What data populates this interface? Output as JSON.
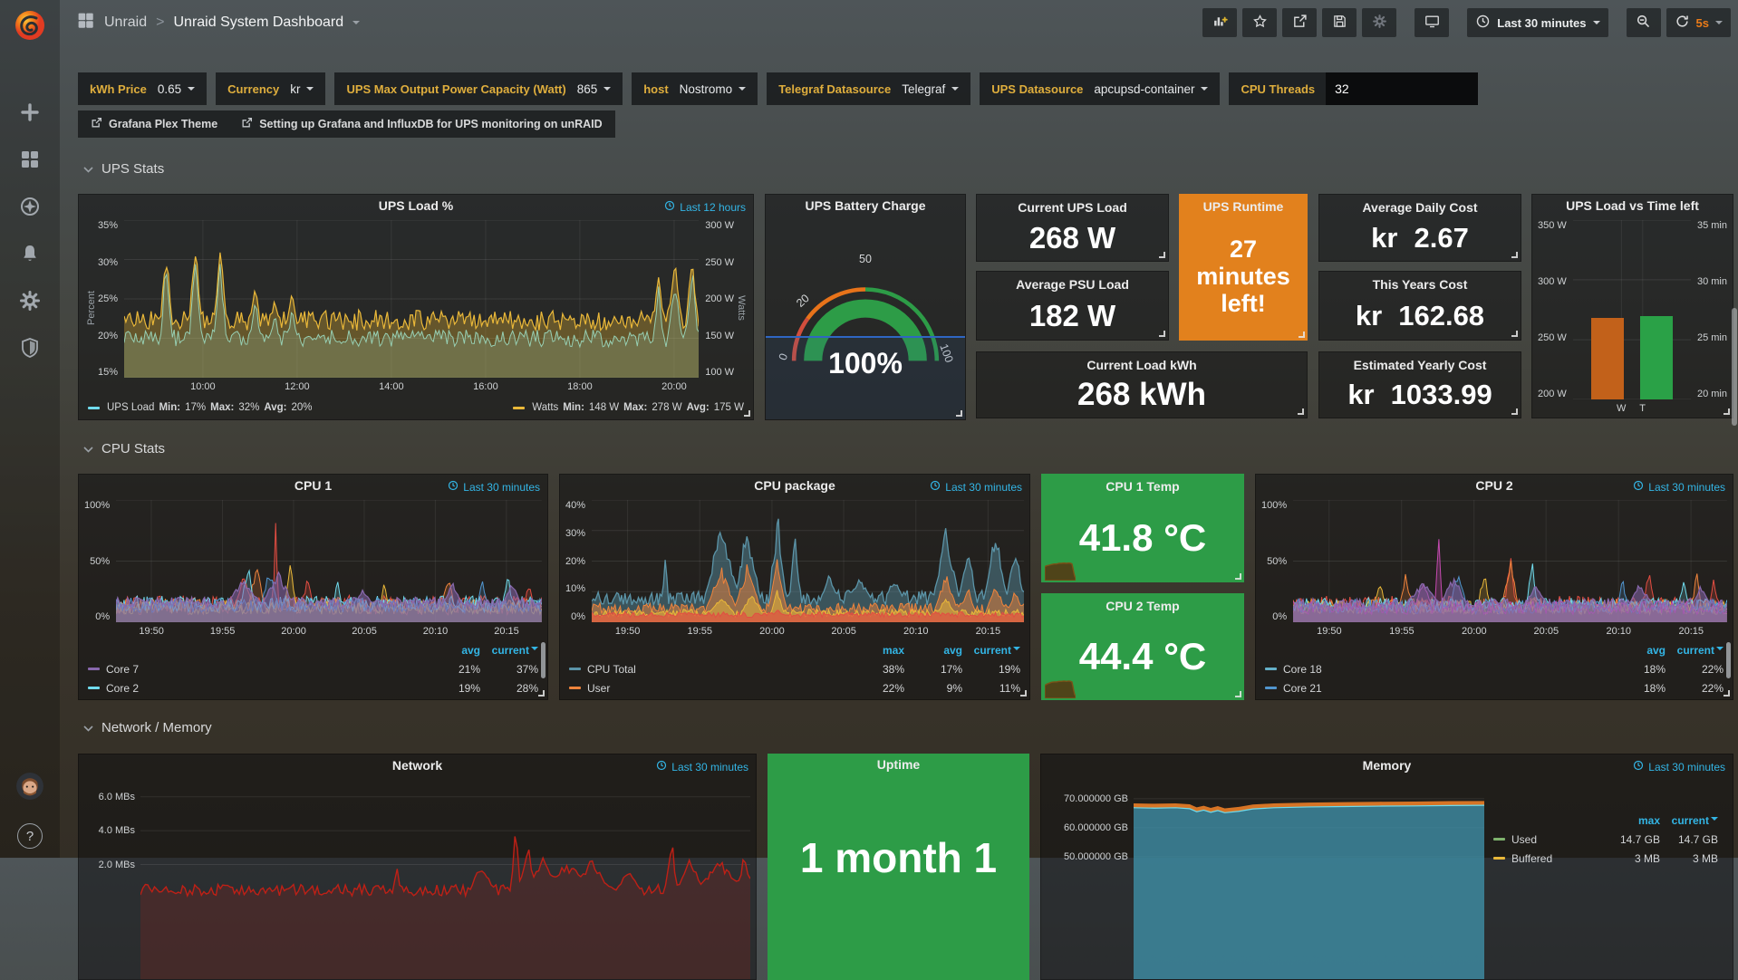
{
  "colors": {
    "accent_orange": "#eb7b18",
    "link_blue": "#33b5e5",
    "panel_green": "#2d9c47",
    "runtime_orange": "#e2811d",
    "stat_green": "#2fa84b",
    "stat_red": "#cc4734",
    "series_cyan": "#70dbed",
    "series_yellow": "#eab839",
    "series_orange": "#ef843c",
    "series_red": "#e24d42",
    "series_purple": "#8868ad",
    "series_blue": "#5195ce",
    "series_lightblue": "#64b0c8",
    "series_magenta": "#c44ab0",
    "series_steelblue": "#5b94a8",
    "network_red": "#bf2016",
    "memory_teal": "#3f8ea6",
    "memory_orange": "#e07926"
  },
  "nav": {
    "breadcrumb": {
      "folder": "Unraid",
      "separator": ">",
      "title": "Unraid System Dashboard"
    },
    "time_range": "Last 30 minutes",
    "refresh_interval": "5s",
    "icons": [
      "add-panel",
      "star",
      "share-dashboard",
      "save-dashboard",
      "dashboard-settings",
      "tv-mode",
      "clock",
      "zoom-out",
      "refresh"
    ]
  },
  "sidebar": {
    "icons": [
      "grafana-logo",
      "plus",
      "dashboards",
      "explore",
      "alerting",
      "configuration",
      "server-admin",
      "avatar",
      "help"
    ],
    "help_glyph": "?"
  },
  "variables": [
    {
      "label": "kWh Price",
      "value": "0.65",
      "type": "dropdown"
    },
    {
      "label": "Currency",
      "value": "kr",
      "type": "dropdown"
    },
    {
      "label": "UPS Max Output Power Capacity (Watt)",
      "value": "865",
      "type": "dropdown"
    },
    {
      "label": "host",
      "value": "Nostromo",
      "type": "dropdown"
    },
    {
      "label": "Telegraf Datasource",
      "value": "Telegraf",
      "type": "dropdown"
    },
    {
      "label": "UPS Datasource",
      "value": "apcupsd-container",
      "type": "dropdown"
    },
    {
      "label": "CPU Threads",
      "value": "32",
      "type": "input"
    }
  ],
  "links": [
    {
      "label": "Grafana Plex Theme"
    },
    {
      "label": "Setting up Grafana and InfluxDB for UPS monitoring on unRAID"
    }
  ],
  "sections": [
    {
      "title": "UPS Stats"
    },
    {
      "title": "CPU Stats"
    },
    {
      "title": "Network / Memory"
    }
  ],
  "panels": {
    "ups_load": {
      "title": "UPS Load %",
      "time_label": "Last 12 hours",
      "ylabel_left": "Percent",
      "ylabel_right": "Watts",
      "yticks_left": [
        "35%",
        "30%",
        "25%",
        "20%",
        "15%"
      ],
      "yticks_right": [
        "300 W",
        "250 W",
        "200 W",
        "150 W",
        "100 W"
      ],
      "xticks": [
        "10:00",
        "12:00",
        "14:00",
        "16:00",
        "18:00",
        "20:00"
      ],
      "legend_labels": {
        "min": "Min:",
        "max": "Max:",
        "avg": "Avg:"
      },
      "legend": [
        {
          "name": "UPS Load",
          "color": "#70dbed",
          "min": "17%",
          "max": "32%",
          "avg": "20%"
        },
        {
          "name": "Watts",
          "color": "#eab839",
          "min": "148 W",
          "max": "278 W",
          "avg": "175 W"
        }
      ]
    },
    "battery": {
      "title": "UPS Battery Charge",
      "value": "100%",
      "ticks": [
        "0",
        "20",
        "50",
        "100"
      ]
    },
    "current_ups_load": {
      "title": "Current UPS Load",
      "value": "268 W"
    },
    "avg_psu_load": {
      "title": "Average PSU Load",
      "value": "182 W"
    },
    "current_load_kwh": {
      "title": "Current Load kWh",
      "value": "268 kWh"
    },
    "ups_runtime": {
      "title": "UPS Runtime",
      "value": "27 minutes left!"
    },
    "avg_daily_cost": {
      "title": "Average Daily Cost",
      "currency": "kr",
      "value": "2.67"
    },
    "this_years_cost": {
      "title": "This Years Cost",
      "currency": "kr",
      "value": "162.68"
    },
    "est_yearly_cost": {
      "title": "Estimated Yearly Cost",
      "currency": "kr",
      "value": "1033.99"
    },
    "ups_bar": {
      "title": "UPS Load vs Time left",
      "yticks_left": [
        "350 W",
        "300 W",
        "250 W",
        "200 W"
      ],
      "yticks_right": [
        "35 min",
        "30 min",
        "25 min",
        "20 min"
      ],
      "watts_range": [
        200,
        350
      ],
      "minutes_range": [
        20,
        35
      ],
      "bars": [
        {
          "label": "W",
          "value": 268,
          "unit": "W",
          "color": "#c2611a"
        },
        {
          "label": "T",
          "value": 27,
          "unit": "min",
          "color": "#2aa147"
        }
      ]
    },
    "cpu1": {
      "title": "CPU 1",
      "time_label": "Last 30 minutes",
      "yticks": [
        "100%",
        "50%",
        "0%"
      ],
      "xticks": [
        "19:50",
        "19:55",
        "20:00",
        "20:05",
        "20:10",
        "20:15"
      ],
      "legend_cols": [
        "avg",
        "current"
      ],
      "legend": [
        {
          "name": "Core 7",
          "color": "#8868ad",
          "values": [
            "21%",
            "37%"
          ]
        },
        {
          "name": "Core 2",
          "color": "#70dbed",
          "values": [
            "19%",
            "28%"
          ]
        }
      ]
    },
    "cpu_package": {
      "title": "CPU package",
      "time_label": "Last 30 minutes",
      "yticks": [
        "40%",
        "30%",
        "20%",
        "10%",
        "0%"
      ],
      "xticks": [
        "19:50",
        "19:55",
        "20:00",
        "20:05",
        "20:10",
        "20:15"
      ],
      "legend_cols": [
        "max",
        "avg",
        "current"
      ],
      "legend": [
        {
          "name": "CPU Total",
          "color": "#5b94a8",
          "values": [
            "38%",
            "17%",
            "19%"
          ]
        },
        {
          "name": "User",
          "color": "#ef843c",
          "values": [
            "22%",
            "9%",
            "11%"
          ]
        }
      ]
    },
    "cpu1_temp": {
      "title": "CPU 1 Temp",
      "value": "41.8 °C"
    },
    "cpu2_temp": {
      "title": "CPU 2 Temp",
      "value": "44.4 °C"
    },
    "cpu2": {
      "title": "CPU 2",
      "time_label": "Last 30 minutes",
      "yticks": [
        "100%",
        "50%",
        "0%"
      ],
      "xticks": [
        "19:50",
        "19:55",
        "20:00",
        "20:05",
        "20:10",
        "20:15"
      ],
      "legend_cols": [
        "avg",
        "current"
      ],
      "legend": [
        {
          "name": "Core 18",
          "color": "#64b0c8",
          "values": [
            "18%",
            "22%"
          ]
        },
        {
          "name": "Core 21",
          "color": "#5195ce",
          "values": [
            "18%",
            "22%"
          ]
        }
      ]
    },
    "network": {
      "title": "Network",
      "time_label": "Last 30 minutes",
      "yticks": [
        "6.0 MBs",
        "4.0 MBs",
        "2.0 MBs"
      ]
    },
    "uptime": {
      "title": "Uptime",
      "value": "1 month 1"
    },
    "memory": {
      "title": "Memory",
      "time_label": "Last 30 minutes",
      "yticks": [
        "70.000000 GB",
        "60.000000 GB",
        "50.000000 GB"
      ],
      "legend_cols": [
        "max",
        "current"
      ],
      "legend": [
        {
          "name": "Used",
          "color": "#7eb26d",
          "values": [
            "14.7 GB",
            "14.7 GB"
          ]
        },
        {
          "name": "Buffered",
          "color": "#eab839",
          "values": [
            "3 MB",
            "3 MB"
          ]
        }
      ]
    }
  }
}
